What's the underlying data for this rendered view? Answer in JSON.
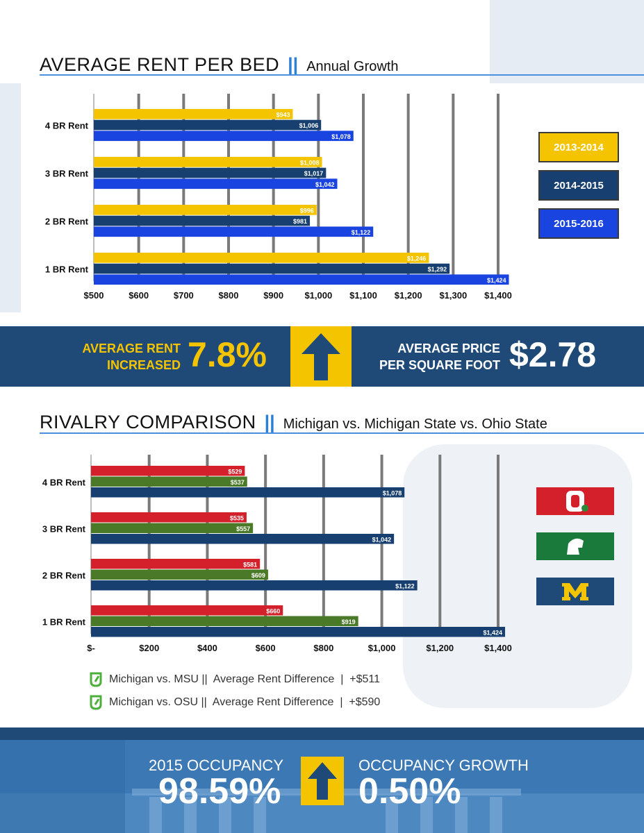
{
  "section1": {
    "title": "AVERAGE RENT PER BED",
    "divider": "||",
    "subtitle": "Annual Growth"
  },
  "stats": {
    "rent_label_1": "AVERAGE RENT",
    "rent_label_2": "INCREASED",
    "rent_value": "7.8%",
    "price_label_1": "AVERAGE PRICE",
    "price_label_2": "PER SQUARE FOOT",
    "price_value": "$2.78"
  },
  "section2": {
    "title": "RIVALRY COMPARISON",
    "divider": "||",
    "subtitle": "Michigan vs. Michigan State vs. Ohio State"
  },
  "notes": [
    "Michigan vs. MSU ||  Average Rent Difference  |  +$511",
    "Michigan vs. OSU ||  Average Rent Difference  |  +$590"
  ],
  "occupancy": {
    "label": "2015 OCCUPANCY",
    "value": "98.59%",
    "growth_label": "OCCUPANCY GROWTH",
    "growth_value": "0.50%"
  },
  "teams": [
    {
      "letter": "O",
      "color": "#d4202a"
    },
    {
      "letter": "",
      "color": "#1a7a3c"
    },
    {
      "letter": "M",
      "color": "#1f4a78",
      "letter_color": "#f5c400"
    }
  ],
  "chart_data": [
    {
      "type": "bar",
      "orientation": "horizontal",
      "categories": [
        "4 BR Rent",
        "3 BR Rent",
        "2 BR Rent",
        "1 BR Rent"
      ],
      "series": [
        {
          "name": "2013-2014",
          "color": "#f5c400",
          "values": [
            943,
            1008,
            996,
            1246
          ],
          "labels": [
            "$943",
            "$1,008",
            "$996",
            "$1,246"
          ]
        },
        {
          "name": "2014-2015",
          "color": "#173f70",
          "values": [
            1006,
            1017,
            981,
            1292
          ],
          "labels": [
            "$1,006",
            "$1,017",
            "$981",
            "$1,292"
          ]
        },
        {
          "name": "2015-2016",
          "color": "#1a44e0",
          "values": [
            1078,
            1042,
            1122,
            1424
          ],
          "labels": [
            "$1,078",
            "$1,042",
            "$1,122",
            "$1,424"
          ]
        }
      ],
      "xlim": [
        500,
        1400
      ],
      "xticks": [
        500,
        600,
        700,
        800,
        900,
        1000,
        1100,
        1200,
        1300,
        1400
      ],
      "xtick_labels": [
        "$500",
        "$600",
        "$700",
        "$800",
        "$900",
        "$1,000",
        "$1,100",
        "$1,200",
        "$1,300",
        "$1,400"
      ],
      "grid": true,
      "legend": "right"
    },
    {
      "type": "bar",
      "orientation": "horizontal",
      "categories": [
        "4 BR Rent",
        "3 BR Rent",
        "2 BR Rent",
        "1 BR Rent"
      ],
      "series": [
        {
          "color": "#d4202a",
          "values": [
            529,
            535,
            581,
            660
          ],
          "labels": [
            "$529",
            "$535",
            "$581",
            "$660"
          ]
        },
        {
          "color": "#4a7a28",
          "values": [
            537,
            557,
            609,
            919
          ],
          "labels": [
            "$537",
            "$557",
            "$609",
            "$919"
          ]
        },
        {
          "color": "#173f70",
          "values": [
            1078,
            1042,
            1122,
            1424
          ],
          "labels": [
            "$1,078",
            "$1,042",
            "$1,122",
            "$1,424"
          ]
        }
      ],
      "xlim": [
        0,
        1400
      ],
      "xticks": [
        0,
        200,
        400,
        600,
        800,
        1000,
        1200,
        1400
      ],
      "xtick_labels": [
        "$-",
        "$200",
        "$400",
        "$600",
        "$800",
        "$1,000",
        "$1,200",
        "$1,400"
      ],
      "grid": true,
      "legend": "right"
    }
  ]
}
